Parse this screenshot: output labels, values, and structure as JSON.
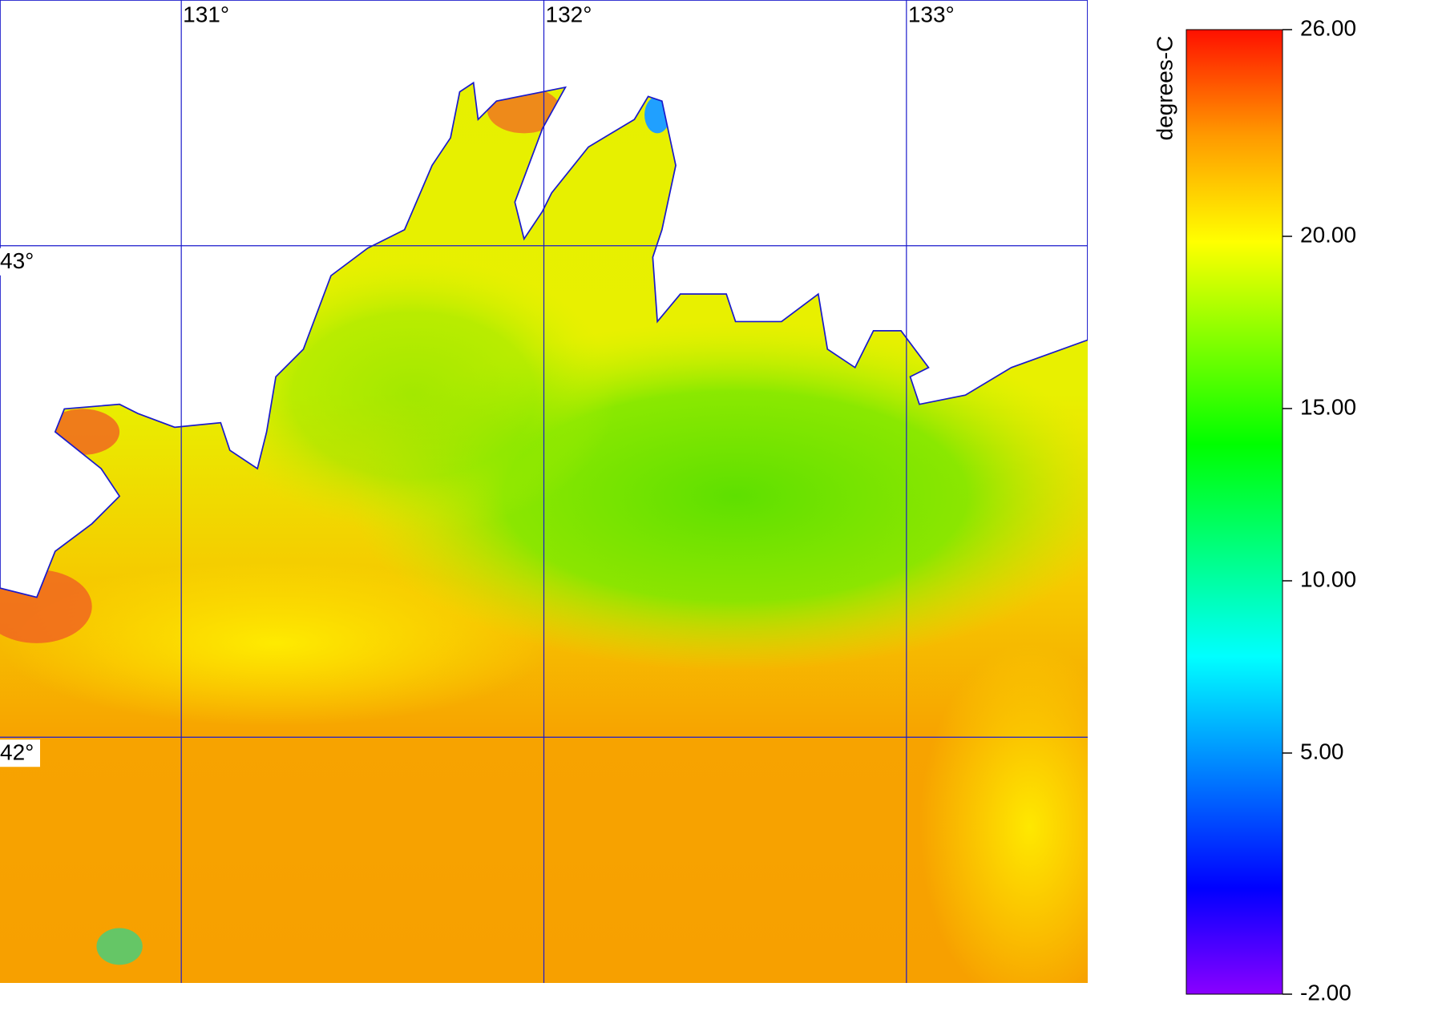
{
  "chart_data": {
    "type": "map",
    "xlim": [
      130.5,
      133.5
    ],
    "ylim": [
      41.5,
      43.5
    ],
    "xticks": [
      {
        "value": 131,
        "label": "131°"
      },
      {
        "value": 132,
        "label": "132°"
      },
      {
        "value": 133,
        "label": "133°"
      }
    ],
    "yticks": [
      {
        "value": 43,
        "label": "43°"
      },
      {
        "value": 42,
        "label": "42°"
      }
    ],
    "grid": true,
    "grid_color": "#1a1acc",
    "colorbar": {
      "label": "degrees-C",
      "lim": [
        -2,
        26
      ],
      "ticks": [
        {
          "value": 26,
          "label": "26.00"
        },
        {
          "value": 20,
          "label": "20.00"
        },
        {
          "value": 15,
          "label": "15.00"
        },
        {
          "value": 10,
          "label": "10.00"
        },
        {
          "value": 5,
          "label": "5.00"
        },
        {
          "value": -2,
          "label": "-2.00"
        }
      ]
    }
  }
}
